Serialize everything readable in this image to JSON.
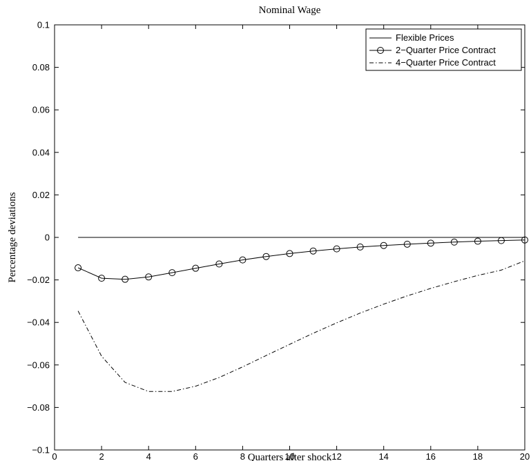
{
  "chart_data": {
    "type": "line",
    "title": "Nominal Wage",
    "xlabel": "Quarters after shock",
    "ylabel": "Percentage deviations",
    "xlim": [
      0,
      20
    ],
    "ylim": [
      -0.1,
      0.1
    ],
    "x_ticks": [
      "0",
      "2",
      "4",
      "6",
      "8",
      "10",
      "12",
      "14",
      "16",
      "18",
      "20"
    ],
    "y_ticks": [
      "0.1",
      "0.08",
      "0.06",
      "0.04",
      "0.02",
      "0",
      "−0.02",
      "−0.04",
      "−0.06",
      "−0.08",
      "−0.1"
    ],
    "grid": false,
    "legend_position": "top-right",
    "x": [
      1,
      2,
      3,
      4,
      5,
      6,
      7,
      8,
      9,
      10,
      11,
      12,
      13,
      14,
      15,
      16,
      17,
      18,
      19,
      20
    ],
    "series": [
      {
        "name": "Flexible Prices",
        "style": "solid",
        "values": [
          0,
          0,
          0,
          0,
          0,
          0,
          0,
          0,
          0,
          0,
          0,
          0,
          0,
          0,
          0,
          0,
          0,
          0,
          0,
          0
        ]
      },
      {
        "name": "2−Quarter Price Contract",
        "style": "solid-circle-markers",
        "values": [
          -0.0143,
          -0.0192,
          -0.0197,
          -0.0186,
          -0.0166,
          -0.0145,
          -0.0125,
          -0.0106,
          -0.009,
          -0.0076,
          -0.0064,
          -0.0054,
          -0.0045,
          -0.0038,
          -0.0032,
          -0.0027,
          -0.0022,
          -0.0018,
          -0.0015,
          -0.0012
        ]
      },
      {
        "name": "4−Quarter Price Contract",
        "style": "dash-dot",
        "values": [
          -0.0346,
          -0.0559,
          -0.0682,
          -0.0725,
          -0.0725,
          -0.07,
          -0.0659,
          -0.0609,
          -0.0556,
          -0.0503,
          -0.0451,
          -0.0402,
          -0.0356,
          -0.0314,
          -0.0275,
          -0.024,
          -0.0208,
          -0.0179,
          -0.0154,
          -0.011
        ]
      }
    ]
  },
  "colors": {
    "line": "#000000",
    "background": "#ffffff"
  }
}
